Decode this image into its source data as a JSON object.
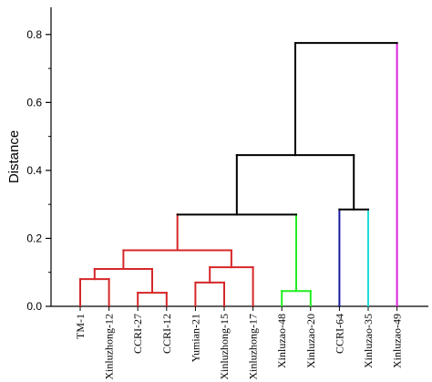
{
  "chart_data": {
    "type": "dendrogram",
    "title": "",
    "xlabel": "",
    "ylabel": "Distance",
    "ylim": [
      0,
      0.88
    ],
    "yticks": [
      "0.0",
      "0.2",
      "0.4",
      "0.6",
      "0.8"
    ],
    "ytick_values": [
      0.0,
      0.2,
      0.4,
      0.6,
      0.8
    ],
    "leaves": [
      "TM-1",
      "Xinluzhong-12",
      "CCRI-27",
      "CCRI-12",
      "Yumian-21",
      "Xinluzhong-15",
      "Xinluzhong-17",
      "Xinluzao-48",
      "Xinluzao-20",
      "CCRI-64",
      "Xinluzao-35",
      "Xinluzao-49"
    ],
    "merges": [
      {
        "left": "leaf:0",
        "right": "leaf:1",
        "height": 0.08,
        "color": "#d62728"
      },
      {
        "left": "leaf:2",
        "right": "leaf:3",
        "height": 0.04,
        "color": "#d62728"
      },
      {
        "left": "node:0",
        "right": "node:1",
        "height": 0.11,
        "color": "#d62728"
      },
      {
        "left": "leaf:4",
        "right": "leaf:5",
        "height": 0.07,
        "color": "#d62728"
      },
      {
        "left": "node:3",
        "right": "leaf:6",
        "height": 0.115,
        "color": "#d62728"
      },
      {
        "left": "node:2",
        "right": "node:4",
        "height": 0.165,
        "color": "#d62728"
      },
      {
        "left": "leaf:7",
        "right": "leaf:8",
        "height": 0.045,
        "color": "#22ee22"
      },
      {
        "left": "node:5",
        "right": "node:6",
        "height": 0.27,
        "color": "#000000"
      },
      {
        "left": "leaf:9",
        "right": "leaf:10",
        "height": 0.285,
        "color": "#000000"
      },
      {
        "left": "node:7",
        "right": "node:8",
        "height": 0.445,
        "color": "#000000"
      },
      {
        "left": "node:9",
        "right": "leaf:11",
        "height": 0.775,
        "color": "#000000"
      }
    ],
    "leaf_branch_colors": [
      "#d62728",
      "#d62728",
      "#d62728",
      "#d62728",
      "#d62728",
      "#d62728",
      "#d62728",
      "#22ee22",
      "#22ee22",
      "#1a1aa0",
      "#22dddd",
      "#dd22dd"
    ]
  }
}
